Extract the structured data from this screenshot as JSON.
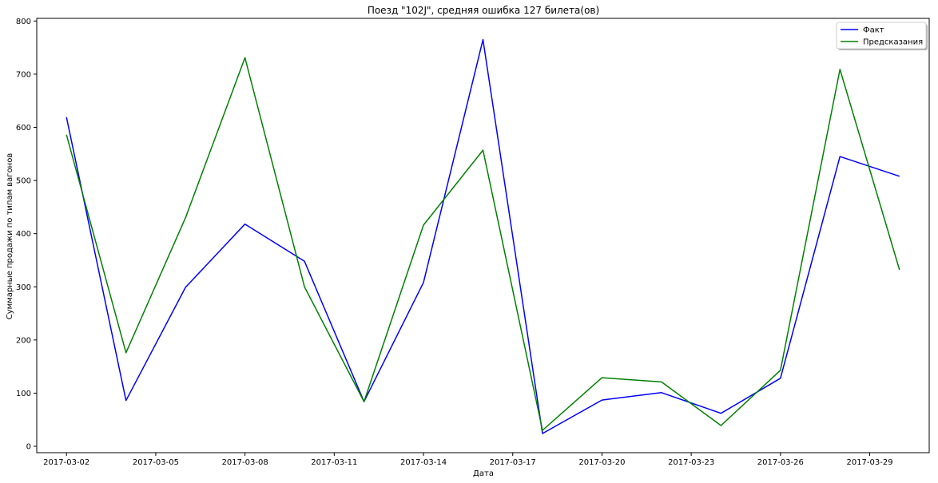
{
  "chart_data": {
    "type": "line",
    "title": "Поезд \"102J\", средняя ошибка 127 билета(ов)",
    "xlabel": "Дата",
    "ylabel": "Суммарные продажи по типам вагонов",
    "x": [
      "2017-03-02",
      "2017-03-04",
      "2017-03-06",
      "2017-03-08",
      "2017-03-10",
      "2017-03-12",
      "2017-03-14",
      "2017-03-16",
      "2017-03-18",
      "2017-03-20",
      "2017-03-22",
      "2017-03-24",
      "2017-03-26",
      "2017-03-28",
      "2017-03-30"
    ],
    "xticks": [
      "2017-03-02",
      "2017-03-05",
      "2017-03-08",
      "2017-03-11",
      "2017-03-14",
      "2017-03-17",
      "2017-03-20",
      "2017-03-23",
      "2017-03-26",
      "2017-03-29"
    ],
    "xlim": [
      "2017-03-01",
      "2017-03-31"
    ],
    "yticks": [
      0,
      100,
      200,
      300,
      400,
      500,
      600,
      700,
      800
    ],
    "ylim": [
      -12,
      805
    ],
    "grid": false,
    "legend_position": "top-right",
    "series": [
      {
        "name": "Факт",
        "color": "#0000ff",
        "values": [
          619,
          86,
          299,
          418,
          348,
          84,
          308,
          765,
          24,
          87,
          101,
          62,
          128,
          545,
          508
        ]
      },
      {
        "name": "Предсказания",
        "color": "#008000",
        "values": [
          586,
          176,
          430,
          731,
          300,
          84,
          416,
          557,
          30,
          129,
          121,
          39,
          143,
          709,
          332
        ]
      }
    ]
  }
}
